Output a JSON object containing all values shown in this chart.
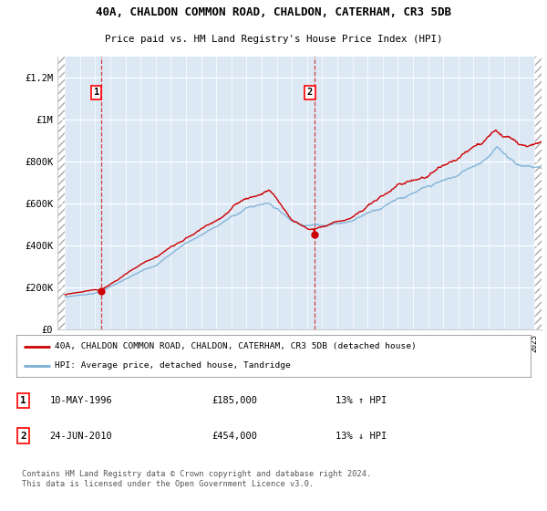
{
  "title1": "40A, CHALDON COMMON ROAD, CHALDON, CATERHAM, CR3 5DB",
  "title2": "Price paid vs. HM Land Registry's House Price Index (HPI)",
  "ylim": [
    0,
    1300000
  ],
  "yticks": [
    0,
    200000,
    400000,
    600000,
    800000,
    1000000,
    1200000
  ],
  "ytick_labels": [
    "£0",
    "£200K",
    "£400K",
    "£600K",
    "£800K",
    "£1M",
    "£1.2M"
  ],
  "background_color": "#ffffff",
  "plot_bg_color": "#dde8f5",
  "grid_color": "#ffffff",
  "hpi_color": "#7ab0d4",
  "price_color": "#cc0000",
  "transaction1_x": 1996.37,
  "transaction1_y": 185000,
  "transaction2_x": 2010.48,
  "transaction2_y": 454000,
  "legend_label1": "40A, CHALDON COMMON ROAD, CHALDON, CATERHAM, CR3 5DB (detached house)",
  "legend_label2": "HPI: Average price, detached house, Tandridge",
  "note1_date": "10-MAY-1996",
  "note1_price": "£185,000",
  "note1_hpi": "13% ↑ HPI",
  "note2_date": "24-JUN-2010",
  "note2_price": "£454,000",
  "note2_hpi": "13% ↓ HPI",
  "footer": "Contains HM Land Registry data © Crown copyright and database right 2024.\nThis data is licensed under the Open Government Licence v3.0.",
  "xmin": 1993.5,
  "xmax": 2025.5
}
